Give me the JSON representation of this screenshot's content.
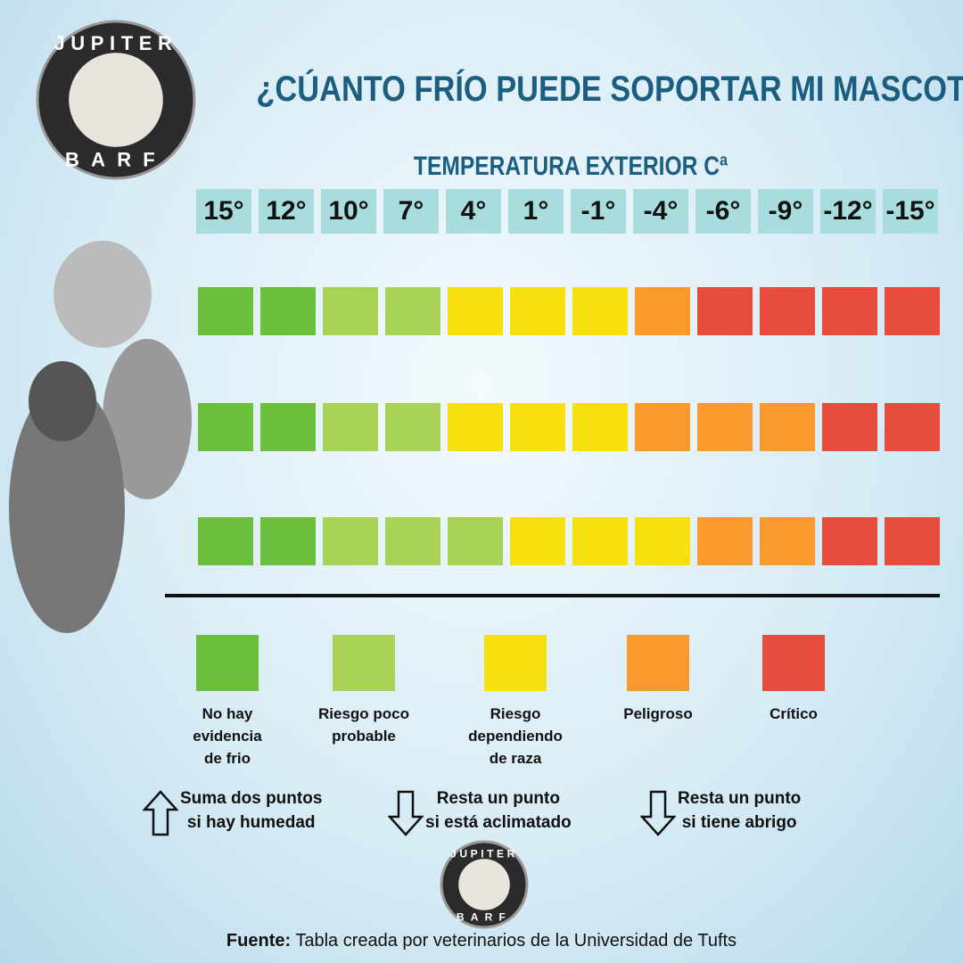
{
  "logo": {
    "top": "JUPITER",
    "bottom": "BARF"
  },
  "title": "¿CÚANTO FRÍO PUEDE SOPORTAR MI MASCOTA?",
  "subtitle": "TEMPERATURA EXTERIOR Cª",
  "temperatures": [
    "15°",
    "12°",
    "10°",
    "7°",
    "4°",
    "1°",
    "-1°",
    "-4°",
    "-6°",
    "-9°",
    "-12°",
    "-15°"
  ],
  "rows": [
    [
      0,
      0,
      1,
      1,
      2,
      2,
      2,
      3,
      4,
      4,
      4,
      4
    ],
    [
      0,
      0,
      1,
      1,
      2,
      2,
      2,
      3,
      3,
      3,
      4,
      4
    ],
    [
      0,
      0,
      1,
      1,
      1,
      2,
      2,
      2,
      3,
      3,
      4,
      4
    ]
  ],
  "legend": [
    {
      "label": "No hay\nevidencia\nde frio",
      "color": "#6cbf3d"
    },
    {
      "label": "Riesgo poco\nprobable",
      "color": "#a8d356"
    },
    {
      "label": "Riesgo\ndependiendo\nde raza",
      "color": "#f7e010"
    },
    {
      "label": "Peligroso",
      "color": "#f89a2e"
    },
    {
      "label": "Crítico",
      "color": "#e84c3d"
    }
  ],
  "notes": [
    {
      "direction": "up",
      "text": "Suma dos puntos\nsi hay humedad"
    },
    {
      "direction": "down",
      "text": "Resta un punto\nsi está aclimatado"
    },
    {
      "direction": "down",
      "text": "Resta un punto\nsi tiene abrigo"
    }
  ],
  "footer": {
    "label": "Fuente:",
    "text": "Tabla creada por veterinarios de la Universidad de Tufts"
  }
}
